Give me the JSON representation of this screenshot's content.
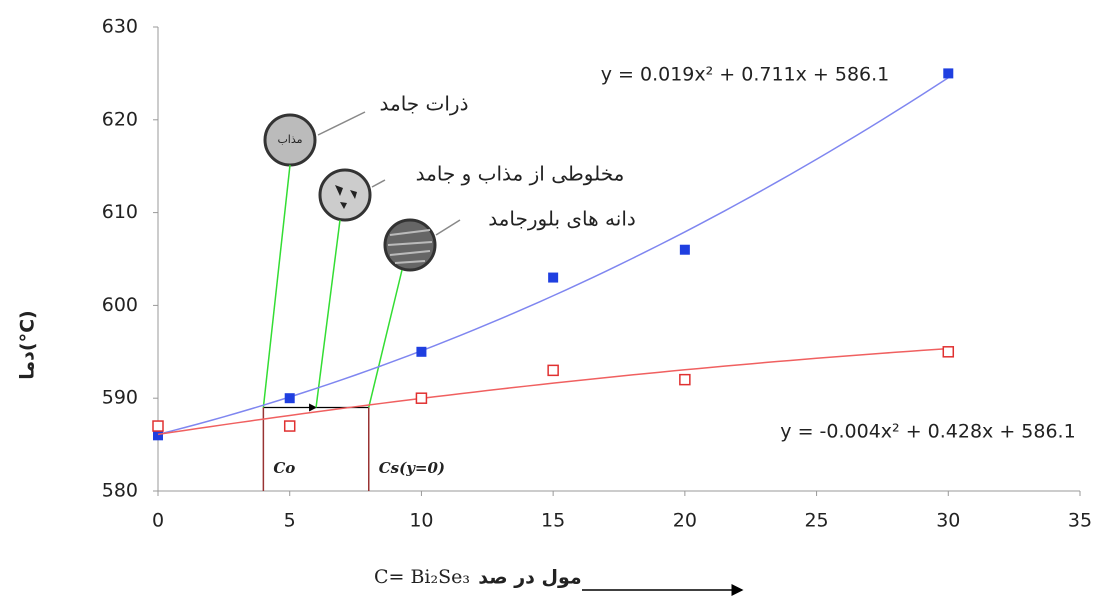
{
  "chart_data": {
    "type": "scatter",
    "y_label": "دما(°C)",
    "x_label_formula": "C= Bi₂Se₃",
    "x_label_text": "مول در صد",
    "xlim": [
      0,
      35
    ],
    "xticks": [
      0,
      5,
      10,
      15,
      20,
      25,
      30,
      35
    ],
    "ylim": [
      580,
      630
    ],
    "yticks": [
      580,
      590,
      600,
      610,
      620,
      630
    ],
    "grid": false,
    "series": [
      {
        "color": "#1f3fe0",
        "marker": "filled",
        "x": [
          0,
          5,
          10,
          15,
          20,
          30
        ],
        "values": [
          586,
          590,
          595,
          603,
          606,
          625
        ],
        "trendline": {
          "label": "y = 0.019x² + 0.711x + 586.1",
          "coefficients": [
            0.019,
            0.711,
            586.1
          ],
          "color": "#7f86f0"
        }
      },
      {
        "color": "#e03030",
        "marker": "open",
        "x": [
          0,
          5,
          10,
          15,
          20,
          30
        ],
        "values": [
          587,
          587,
          590,
          593,
          592,
          595
        ],
        "trendline": {
          "label": "y = -0.004x² + 0.428x + 586.1",
          "coefficients": [
            -0.004,
            0.428,
            586.1
          ],
          "color": "#f06060"
        }
      }
    ],
    "composition_lines": [
      {
        "label": "Co",
        "x": 4
      },
      {
        "label": "Cs(y=0)",
        "x": 8
      }
    ],
    "tie_line_y": 589,
    "annotations": [
      "ذرات جامد",
      "مخلوطی از مذاب و جامد",
      "دانه های بلورجامد"
    ],
    "circle_text": "مذاب"
  }
}
